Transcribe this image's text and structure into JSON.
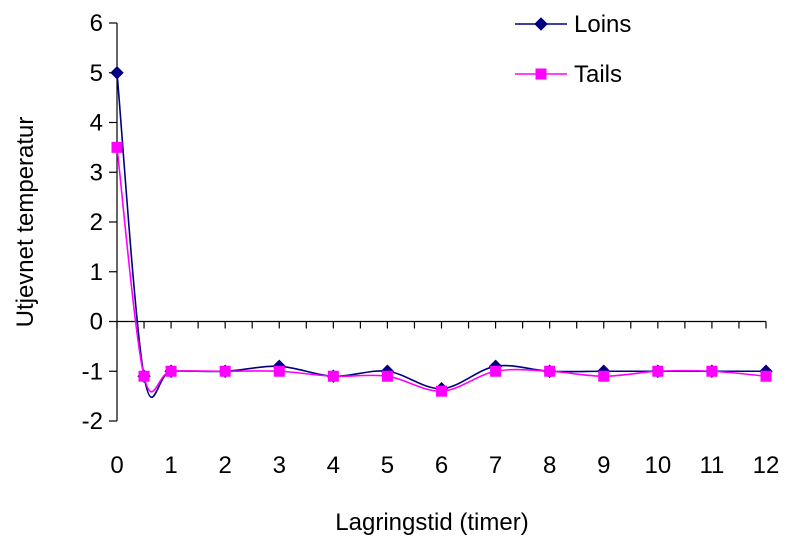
{
  "chart_data": {
    "type": "line",
    "xlabel": "Lagringstid (timer)",
    "ylabel": "Utjevnet temperatur",
    "xlim": [
      0,
      12
    ],
    "ylim": [
      -2,
      6
    ],
    "xticks": [
      "0",
      "1",
      "2",
      "3",
      "4",
      "5",
      "6",
      "7",
      "8",
      "9",
      "10",
      "11",
      "12"
    ],
    "yticks": [
      "6",
      "5",
      "4",
      "3",
      "2",
      "1",
      "0",
      "-1",
      "-2"
    ],
    "grid": false,
    "legend_position": "top-right",
    "series": [
      {
        "name": "Loins",
        "color": "#000080",
        "marker": "diamond",
        "x": [
          0,
          0.5,
          1,
          2,
          3,
          4,
          5,
          6,
          7,
          8,
          9,
          10,
          11,
          12
        ],
        "y": [
          5.0,
          -1.1,
          -1.0,
          -1.0,
          -0.9,
          -1.1,
          -1.0,
          -1.35,
          -0.9,
          -1.0,
          -1.0,
          -1.0,
          -1.0,
          -1.0
        ]
      },
      {
        "name": "Tails",
        "color": "#ff00ff",
        "marker": "square",
        "x": [
          0,
          0.5,
          1,
          2,
          3,
          4,
          5,
          6,
          7,
          8,
          9,
          10,
          11,
          12
        ],
        "y": [
          3.5,
          -1.1,
          -1.0,
          -1.0,
          -1.0,
          -1.1,
          -1.1,
          -1.4,
          -1.0,
          -1.0,
          -1.1,
          -1.0,
          -1.0,
          -1.1
        ]
      }
    ]
  }
}
